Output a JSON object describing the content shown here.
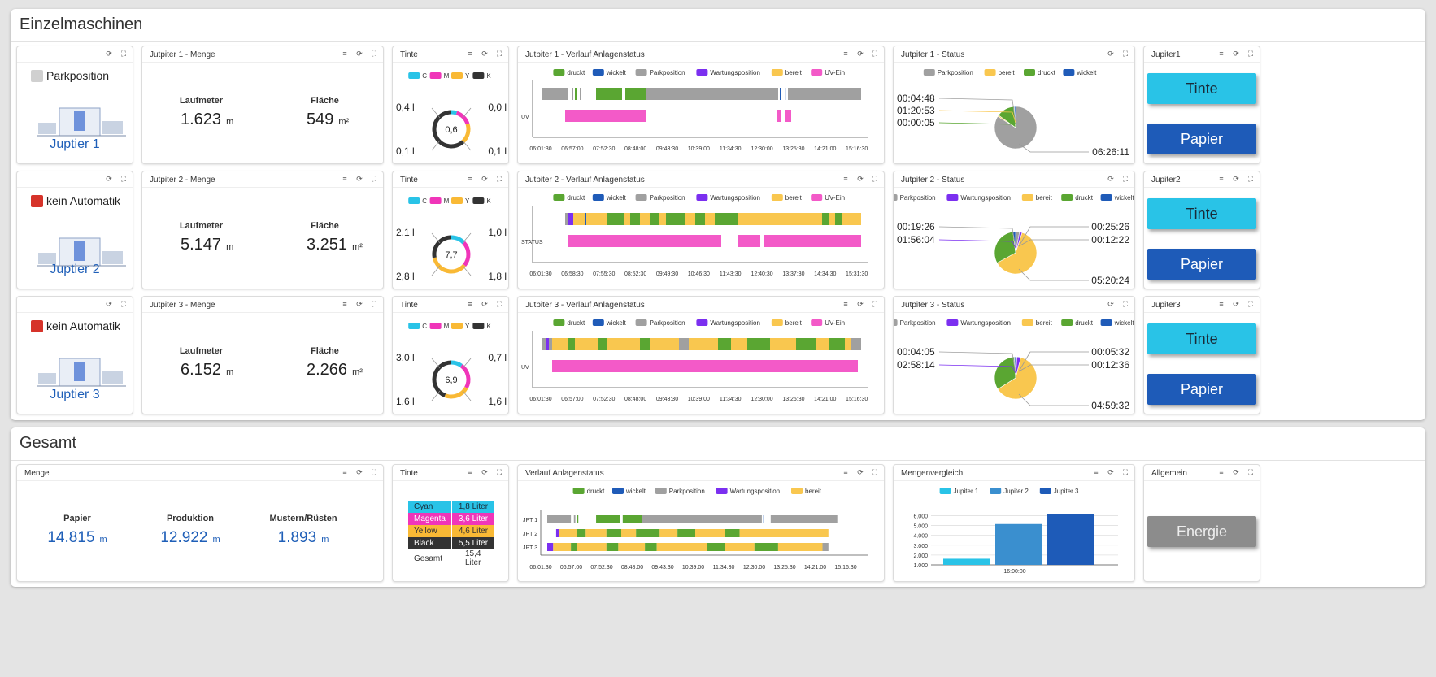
{
  "sections": {
    "einzel": "Einzelmaschinen",
    "gesamt": "Gesamt"
  },
  "colors": {
    "druckt": "#5aa632",
    "wickelt": "#1f5bb8",
    "parkposition": "#a0a0a0",
    "wartungsposition": "#7b2ff0",
    "bereit": "#f9c74f",
    "uv_ein": "#f35ac8",
    "C": "#29c3e7",
    "M": "#f035b9",
    "Y": "#f9b935",
    "K": "#333333"
  },
  "icons": {
    "menu": "list-icon",
    "refresh": "refresh-icon",
    "fullscreen": "fullscreen-icon"
  },
  "rows": [
    {
      "status_text": "Parkposition",
      "status_color": "#d0d0d0",
      "machine_name": "Juptier 1",
      "menge_title": "Jutpiter 1 - Menge",
      "laufmeter_label": "Laufmeter",
      "laufmeter_value": "1.623",
      "laufmeter_unit": "m",
      "flaeche_label": "Fläche",
      "flaeche_value": "549",
      "flaeche_unit": "m²",
      "tinte_title": "Tinte",
      "ink_center": "0,6",
      "ink_tl": "0,4 l",
      "ink_tr": "0,0 l",
      "ink_bl": "0,1 l",
      "ink_br": "0,1 l",
      "ink_arcs": [
        0.05,
        0.15,
        0.18,
        0.62
      ],
      "verlauf_title": "Jutpiter 1 - Verlauf Anlagenstatus",
      "verlauf_legend": [
        "druckt",
        "wickelt",
        "Parkposition",
        "Wartungsposition",
        "bereit",
        "UV-Ein"
      ],
      "verlauf_row_labels": [
        "",
        "UV"
      ],
      "verlauf_ticks": [
        "06:01:30",
        "06:57:00",
        "07:52:30",
        "08:48:00",
        "09:43:30",
        "10:39:00",
        "11:34:30",
        "12:30:00",
        "13:25:30",
        "14:21:00",
        "15:16:30"
      ],
      "verlauf_bars": [
        [
          [
            0.0,
            0.08,
            "#a0a0a0"
          ],
          [
            0.09,
            0.095,
            "#a0a0a0"
          ],
          [
            0.1,
            0.105,
            "#5aa632"
          ],
          [
            0.115,
            0.12,
            "#a0a0a0"
          ],
          [
            0.165,
            0.245,
            "#5aa632"
          ],
          [
            0.255,
            0.32,
            "#5aa632"
          ],
          [
            0.32,
            0.725,
            "#a0a0a0"
          ],
          [
            0.73,
            0.733,
            "#1f5bb8"
          ],
          [
            0.745,
            0.748,
            "#1f5bb8"
          ],
          [
            0.755,
            0.98,
            "#a0a0a0"
          ]
        ],
        [
          [
            0.07,
            0.32,
            "#f35ac8"
          ],
          [
            0.72,
            0.735,
            "#f35ac8"
          ],
          [
            0.745,
            0.765,
            "#f35ac8"
          ]
        ]
      ],
      "status_title": "Jutpiter 1 - Status",
      "status_legend": [
        "Parkposition",
        "bereit",
        "druckt",
        "wickelt"
      ],
      "status_legend_colors": [
        "#a0a0a0",
        "#f9c74f",
        "#5aa632",
        "#1f5bb8"
      ],
      "pie": [
        {
          "value": 0.84,
          "color": "#a0a0a0"
        },
        {
          "value": 0.01,
          "color": "#f9c74f"
        },
        {
          "value": 0.14,
          "color": "#5aa632"
        },
        {
          "value": 0.01,
          "color": "#1f5bb8"
        }
      ],
      "pie_labels_left": [
        "00:04:48",
        "01:20:53",
        "00:00:05"
      ],
      "pie_labels_right": [
        "06:26:11"
      ],
      "side_title": "Jupiter1",
      "tinte_btn": "Tinte",
      "papier_btn": "Papier"
    },
    {
      "status_text": "kein Automatik",
      "status_color": "#d6332a",
      "machine_name": "Juptier 2",
      "menge_title": "Jutpiter 2 - Menge",
      "laufmeter_label": "Laufmeter",
      "laufmeter_value": "5.147",
      "laufmeter_unit": "m",
      "flaeche_label": "Fläche",
      "flaeche_value": "3.251",
      "flaeche_unit": "m²",
      "tinte_title": "Tinte",
      "ink_center": "7,7",
      "ink_tl": "2,1 l",
      "ink_tr": "1,0 l",
      "ink_bl": "2,8 l",
      "ink_br": "1,8 l",
      "ink_arcs": [
        0.13,
        0.23,
        0.36,
        0.28
      ],
      "verlauf_title": "Jutpiter 2 - Verlauf Anlagenstatus",
      "verlauf_legend": [
        "druckt",
        "wickelt",
        "Parkposition",
        "Wartungsposition",
        "bereit",
        "UV-Ein"
      ],
      "verlauf_row_labels": [
        "",
        "STATUS"
      ],
      "verlauf_ticks": [
        "06:01:30",
        "06:58:30",
        "07:55:30",
        "08:52:30",
        "09:49:30",
        "10:46:30",
        "11:43:30",
        "12:40:30",
        "13:37:30",
        "14:34:30",
        "15:31:30"
      ],
      "verlauf_bars": [
        [
          [
            0.07,
            0.08,
            "#a0a0a0"
          ],
          [
            0.08,
            0.095,
            "#7b2ff0"
          ],
          [
            0.095,
            0.13,
            "#f9c74f"
          ],
          [
            0.13,
            0.135,
            "#1f5bb8"
          ],
          [
            0.135,
            0.2,
            "#f9c74f"
          ],
          [
            0.2,
            0.25,
            "#5aa632"
          ],
          [
            0.25,
            0.27,
            "#f9c74f"
          ],
          [
            0.27,
            0.3,
            "#5aa632"
          ],
          [
            0.3,
            0.33,
            "#f9c74f"
          ],
          [
            0.33,
            0.36,
            "#5aa632"
          ],
          [
            0.36,
            0.38,
            "#f9c74f"
          ],
          [
            0.38,
            0.44,
            "#5aa632"
          ],
          [
            0.44,
            0.47,
            "#f9c74f"
          ],
          [
            0.47,
            0.5,
            "#5aa632"
          ],
          [
            0.5,
            0.53,
            "#f9c74f"
          ],
          [
            0.53,
            0.6,
            "#5aa632"
          ],
          [
            0.6,
            0.86,
            "#f9c74f"
          ],
          [
            0.86,
            0.88,
            "#5aa632"
          ],
          [
            0.88,
            0.9,
            "#f9c74f"
          ],
          [
            0.9,
            0.92,
            "#5aa632"
          ],
          [
            0.92,
            0.98,
            "#f9c74f"
          ]
        ],
        [
          [
            0.08,
            0.55,
            "#f35ac8"
          ],
          [
            0.6,
            0.67,
            "#f35ac8"
          ],
          [
            0.68,
            0.98,
            "#f35ac8"
          ]
        ]
      ],
      "status_title": "Jutpiter 2 - Status",
      "status_legend": [
        "Parkposition",
        "Wartungsposition",
        "bereit",
        "druckt",
        "wickelt"
      ],
      "status_legend_colors": [
        "#a0a0a0",
        "#7b2ff0",
        "#f9c74f",
        "#5aa632",
        "#1f5bb8"
      ],
      "pie": [
        {
          "value": 0.03,
          "color": "#a0a0a0"
        },
        {
          "value": 0.02,
          "color": "#7b2ff0"
        },
        {
          "value": 0.62,
          "color": "#f9c74f"
        },
        {
          "value": 0.31,
          "color": "#5aa632"
        },
        {
          "value": 0.02,
          "color": "#1f5bb8"
        }
      ],
      "pie_labels_left": [
        "00:19:26",
        "01:56:04"
      ],
      "pie_labels_right": [
        "00:25:26",
        "00:12:22",
        "05:20:24"
      ],
      "side_title": "Jupiter2",
      "tinte_btn": "Tinte",
      "papier_btn": "Papier"
    },
    {
      "status_text": "kein Automatik",
      "status_color": "#d6332a",
      "machine_name": "Juptier 3",
      "menge_title": "Jutpiter 3 - Menge",
      "laufmeter_label": "Laufmeter",
      "laufmeter_value": "6.152",
      "laufmeter_unit": "m",
      "flaeche_label": "Fläche",
      "flaeche_value": "2.266",
      "flaeche_unit": "m²",
      "tinte_title": "Tinte",
      "ink_center": "6,9",
      "ink_tl": "3,0 l",
      "ink_tr": "0,7 l",
      "ink_bl": "1,6 l",
      "ink_br": "1,6 l",
      "ink_arcs": [
        0.1,
        0.23,
        0.23,
        0.44
      ],
      "verlauf_title": "Jutpiter 3 - Verlauf Anlagenstatus",
      "verlauf_legend": [
        "druckt",
        "wickelt",
        "Parkposition",
        "Wartungsposition",
        "bereit",
        "UV-Ein"
      ],
      "verlauf_row_labels": [
        "",
        "UV"
      ],
      "verlauf_ticks": [
        "06:01:30",
        "06:57:00",
        "07:52:30",
        "08:48:00",
        "09:43:30",
        "10:39:00",
        "11:34:30",
        "12:30:00",
        "13:25:30",
        "14:21:00",
        "15:16:30"
      ],
      "verlauf_bars": [
        [
          [
            0.0,
            0.01,
            "#a0a0a0"
          ],
          [
            0.01,
            0.02,
            "#7b2ff0"
          ],
          [
            0.02,
            0.03,
            "#a0a0a0"
          ],
          [
            0.03,
            0.08,
            "#f9c74f"
          ],
          [
            0.08,
            0.1,
            "#5aa632"
          ],
          [
            0.1,
            0.17,
            "#f9c74f"
          ],
          [
            0.17,
            0.2,
            "#5aa632"
          ],
          [
            0.2,
            0.3,
            "#f9c74f"
          ],
          [
            0.3,
            0.33,
            "#5aa632"
          ],
          [
            0.33,
            0.42,
            "#f9c74f"
          ],
          [
            0.42,
            0.45,
            "#a0a0a0"
          ],
          [
            0.45,
            0.54,
            "#f9c74f"
          ],
          [
            0.54,
            0.58,
            "#5aa632"
          ],
          [
            0.58,
            0.63,
            "#f9c74f"
          ],
          [
            0.63,
            0.7,
            "#5aa632"
          ],
          [
            0.7,
            0.78,
            "#f9c74f"
          ],
          [
            0.78,
            0.84,
            "#5aa632"
          ],
          [
            0.84,
            0.88,
            "#f9c74f"
          ],
          [
            0.88,
            0.93,
            "#5aa632"
          ],
          [
            0.93,
            0.95,
            "#f9c74f"
          ],
          [
            0.95,
            0.98,
            "#a0a0a0"
          ]
        ],
        [
          [
            0.03,
            0.97,
            "#f35ac8"
          ]
        ]
      ],
      "status_title": "Jutpiter 3 - Status",
      "status_legend": [
        "Parkposition",
        "Wartungsposition",
        "bereit",
        "druckt",
        "wickelt"
      ],
      "status_legend_colors": [
        "#a0a0a0",
        "#7b2ff0",
        "#f9c74f",
        "#5aa632",
        "#1f5bb8"
      ],
      "pie": [
        {
          "value": 0.01,
          "color": "#a0a0a0"
        },
        {
          "value": 0.03,
          "color": "#7b2ff0"
        },
        {
          "value": 0.62,
          "color": "#f9c74f"
        },
        {
          "value": 0.33,
          "color": "#5aa632"
        },
        {
          "value": 0.01,
          "color": "#1f5bb8"
        }
      ],
      "pie_labels_left": [
        "00:04:05",
        "02:58:14"
      ],
      "pie_labels_right": [
        "00:05:32",
        "00:12:36",
        "04:59:32"
      ],
      "side_title": "Jupiter3",
      "tinte_btn": "Tinte",
      "papier_btn": "Papier"
    }
  ],
  "gesamt": {
    "menge_title": "Menge",
    "papier_label": "Papier",
    "papier_value": "14.815",
    "papier_unit": "m",
    "produktion_label": "Produktion",
    "produktion_value": "12.922",
    "produktion_unit": "m",
    "mustern_label": "Mustern/Rüsten",
    "mustern_value": "1.893",
    "mustern_unit": "m",
    "tinte_title": "Tinte",
    "ink_table": [
      {
        "name": "Cyan",
        "value": "1,8 Liter",
        "bg": "#29c3e7",
        "fg": "#1a2b38"
      },
      {
        "name": "Magenta",
        "value": "3,6 Liter",
        "bg": "#f035b9",
        "fg": "#ffffff"
      },
      {
        "name": "Yellow",
        "value": "4,6 Liter",
        "bg": "#f9b935",
        "fg": "#333333"
      },
      {
        "name": "Black",
        "value": "5,5 Liter",
        "bg": "#333333",
        "fg": "#ffffff"
      },
      {
        "name": "Gesamt",
        "value": "15,4 Liter",
        "bg": "#ffffff",
        "fg": "#333333"
      }
    ],
    "verlauf_title": "Verlauf Anlagenstatus",
    "verlauf_legend": [
      "druckt",
      "wickelt",
      "Parkposition",
      "Wartungsposition",
      "bereit"
    ],
    "verlauf_ticks": [
      "06:01:30",
      "06:57:00",
      "07:52:30",
      "08:48:00",
      "09:43:30",
      "10:39:00",
      "11:34:30",
      "12:30:00",
      "13:25:30",
      "14:21:00",
      "15:16:30"
    ],
    "verlauf_row_labels": [
      "JPT 1",
      "JPT 2",
      "JPT 3"
    ],
    "verlauf_bars": [
      [
        [
          0.0,
          0.08,
          "#a0a0a0"
        ],
        [
          0.09,
          0.095,
          "#a0a0a0"
        ],
        [
          0.1,
          0.105,
          "#5aa632"
        ],
        [
          0.165,
          0.245,
          "#5aa632"
        ],
        [
          0.255,
          0.32,
          "#5aa632"
        ],
        [
          0.32,
          0.725,
          "#a0a0a0"
        ],
        [
          0.73,
          0.733,
          "#1f5bb8"
        ],
        [
          0.755,
          0.98,
          "#a0a0a0"
        ]
      ],
      [
        [
          0.03,
          0.04,
          "#7b2ff0"
        ],
        [
          0.04,
          0.1,
          "#f9c74f"
        ],
        [
          0.1,
          0.13,
          "#5aa632"
        ],
        [
          0.13,
          0.2,
          "#f9c74f"
        ],
        [
          0.2,
          0.25,
          "#5aa632"
        ],
        [
          0.25,
          0.3,
          "#f9c74f"
        ],
        [
          0.3,
          0.38,
          "#5aa632"
        ],
        [
          0.38,
          0.44,
          "#f9c74f"
        ],
        [
          0.44,
          0.5,
          "#5aa632"
        ],
        [
          0.5,
          0.6,
          "#f9c74f"
        ],
        [
          0.6,
          0.65,
          "#5aa632"
        ],
        [
          0.65,
          0.95,
          "#f9c74f"
        ]
      ],
      [
        [
          0.0,
          0.02,
          "#7b2ff0"
        ],
        [
          0.02,
          0.08,
          "#f9c74f"
        ],
        [
          0.08,
          0.1,
          "#5aa632"
        ],
        [
          0.1,
          0.2,
          "#f9c74f"
        ],
        [
          0.2,
          0.24,
          "#5aa632"
        ],
        [
          0.24,
          0.33,
          "#f9c74f"
        ],
        [
          0.33,
          0.37,
          "#5aa632"
        ],
        [
          0.37,
          0.54,
          "#f9c74f"
        ],
        [
          0.54,
          0.6,
          "#5aa632"
        ],
        [
          0.6,
          0.7,
          "#f9c74f"
        ],
        [
          0.7,
          0.78,
          "#5aa632"
        ],
        [
          0.78,
          0.93,
          "#f9c74f"
        ],
        [
          0.93,
          0.95,
          "#a0a0a0"
        ]
      ]
    ],
    "vergleich_title": "Mengenvergleich",
    "allgemein_title": "Allgemein",
    "energie_btn": "Energie"
  },
  "chart_data": {
    "type": "bar",
    "categories": [
      "16:00:00"
    ],
    "series": [
      {
        "name": "Jupiter 1",
        "values": [
          1623
        ],
        "color": "#29c3e7"
      },
      {
        "name": "Jupiter 2",
        "values": [
          5147
        ],
        "color": "#3a8fcf"
      },
      {
        "name": "Jupiter 3",
        "values": [
          6152
        ],
        "color": "#1e5bb8"
      }
    ],
    "yticks": [
      "1.000",
      "2.000",
      "3.000",
      "4.000",
      "5.000",
      "6.000"
    ],
    "ylim": [
      1000,
      6200
    ]
  }
}
